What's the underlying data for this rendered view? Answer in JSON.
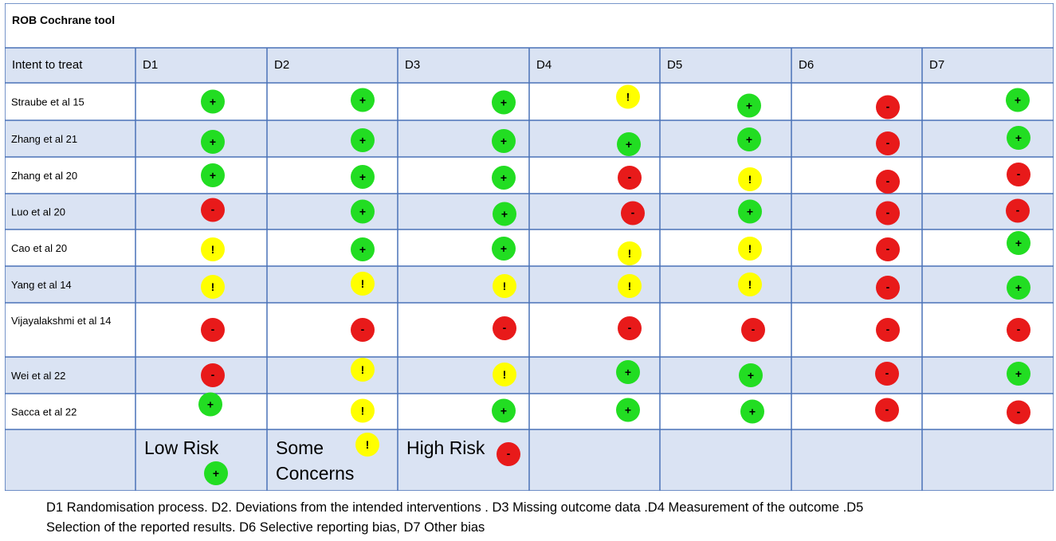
{
  "title": "ROB Cochrane tool",
  "columns": [
    "Intent to treat",
    "D1",
    "D2",
    "D3",
    "D4",
    "D5",
    "D6",
    "D7"
  ],
  "symbols": {
    "low": {
      "glyph": "+",
      "color": "#22dd22"
    },
    "some": {
      "glyph": "!",
      "color": "#ffff00"
    },
    "high": {
      "glyph": "-",
      "color": "#e81a1a"
    }
  },
  "rows": [
    {
      "study": "Straube et al 15",
      "ratings": [
        "low",
        "low",
        "low",
        "some",
        "low",
        "high",
        "low"
      ]
    },
    {
      "study": "Zhang et al  21",
      "ratings": [
        "low",
        "low",
        "low",
        "low",
        "low",
        "high",
        "low"
      ]
    },
    {
      "study": "Zhang et al 20",
      "ratings": [
        "low",
        "low",
        "low",
        "high",
        "some",
        "high",
        "high"
      ]
    },
    {
      "study": "Luo et al 20",
      "ratings": [
        "high",
        "low",
        "low",
        "high",
        "low",
        "high",
        "high"
      ]
    },
    {
      "study": "Cao et al  20",
      "ratings": [
        "some",
        "low",
        "low",
        "some",
        "some",
        "high",
        "low"
      ]
    },
    {
      "study": "Yang et al 14",
      "ratings": [
        "some",
        "some",
        "some",
        "some",
        "some",
        "high",
        "low"
      ]
    },
    {
      "study": "Vijayalakshmi et al 14",
      "ratings": [
        "high",
        "high",
        "high",
        "high",
        "high",
        "high",
        "high"
      ]
    },
    {
      "study": "Wei et al 22",
      "ratings": [
        "high",
        "some",
        "some",
        "low",
        "low",
        "high",
        "low"
      ]
    },
    {
      "study": "Sacca et al 22",
      "ratings": [
        "low",
        "some",
        "low",
        "low",
        "low",
        "high",
        "high"
      ]
    }
  ],
  "legend": {
    "low_label": "Low Risk",
    "some_label_line1": "Some",
    "some_label_line2": "Concerns",
    "high_label": "High Risk"
  },
  "footnote": {
    "line1": "D1 Randomisation process. D2. Deviations from the intended interventions . D3 Missing outcome data  .D4 Measurement of the outcome .D5",
    "line2": "Selection of the reported results. D6 Selective reporting bias,  D7 Other bias"
  }
}
